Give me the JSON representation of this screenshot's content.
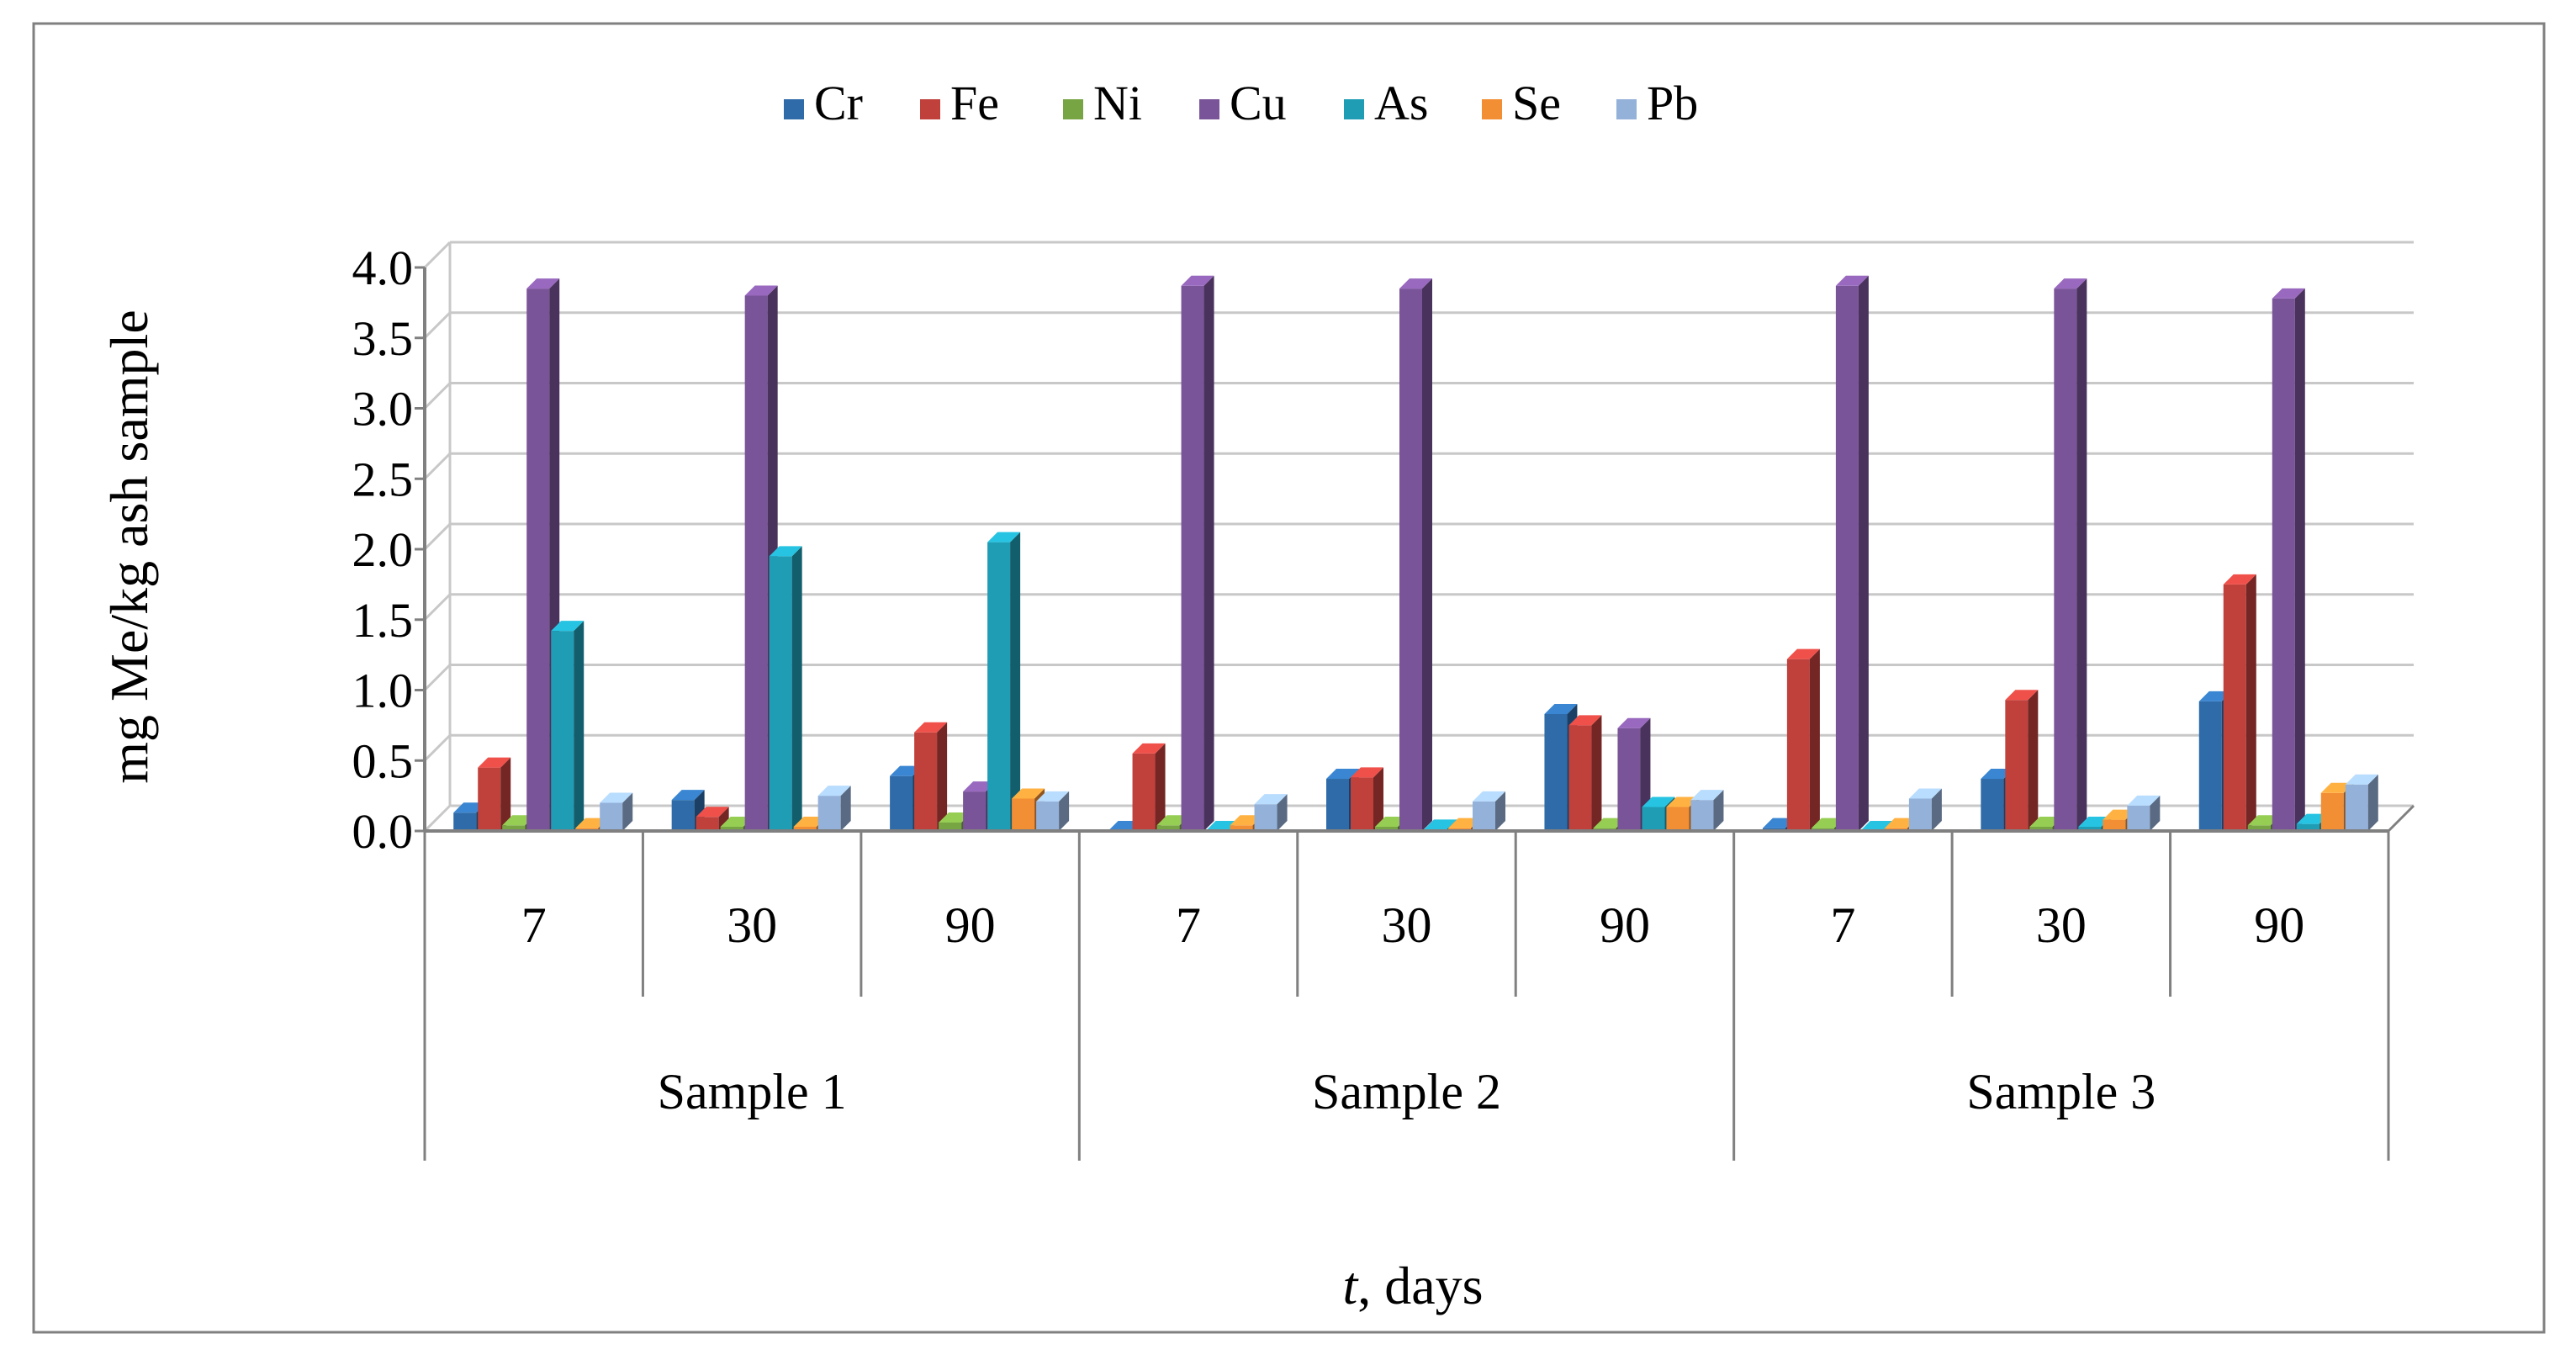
{
  "chart_data": {
    "type": "bar",
    "style": "3d-clustered-column",
    "title": "",
    "ylabel": "mg Me/kg ash sample",
    "xlabel_italic": "t",
    "xlabel_rest": ", days",
    "ylim": [
      0,
      4
    ],
    "yticks": [
      "0.0",
      "0.5",
      "1.0",
      "1.5",
      "2.0",
      "2.5",
      "3.0",
      "3.5",
      "4.0"
    ],
    "ytick_values": [
      0,
      0.5,
      1,
      1.5,
      2,
      2.5,
      3,
      3.5,
      4
    ],
    "legend_position": "top-center",
    "grid": true,
    "groups": [
      {
        "label": "Sample 1",
        "categories": [
          "7",
          "30",
          "90"
        ]
      },
      {
        "label": "Sample 2",
        "categories": [
          "7",
          "30",
          "90"
        ]
      },
      {
        "label": "Sample 3",
        "categories": [
          "7",
          "30",
          "90"
        ]
      }
    ],
    "series": [
      {
        "name": "Cr",
        "color": "#2E6BA8",
        "values": [
          0.13,
          0.22,
          0.39,
          0.0,
          0.37,
          0.83,
          0.02,
          0.37,
          0.92
        ]
      },
      {
        "name": "Fe",
        "color": "#C0403B",
        "values": [
          0.45,
          0.1,
          0.7,
          0.55,
          0.38,
          0.75,
          1.22,
          0.93,
          1.75
        ]
      },
      {
        "name": "Ni",
        "color": "#78A543",
        "values": [
          0.04,
          0.03,
          0.06,
          0.04,
          0.03,
          0.02,
          0.02,
          0.03,
          0.04
        ]
      },
      {
        "name": "Cu",
        "color": "#7A5499",
        "values": [
          3.85,
          3.8,
          0.28,
          3.87,
          3.85,
          0.73,
          3.87,
          3.85,
          3.78
        ]
      },
      {
        "name": "As",
        "color": "#1E9DB5",
        "values": [
          1.42,
          1.95,
          2.05,
          0.0,
          0.01,
          0.17,
          0.0,
          0.03,
          0.05
        ]
      },
      {
        "name": "Se",
        "color": "#F28E34",
        "values": [
          0.02,
          0.03,
          0.23,
          0.04,
          0.02,
          0.17,
          0.02,
          0.08,
          0.27
        ]
      },
      {
        "name": "Pb",
        "color": "#94B1D9",
        "values": [
          0.2,
          0.25,
          0.21,
          0.19,
          0.21,
          0.22,
          0.23,
          0.18,
          0.33
        ]
      }
    ]
  }
}
